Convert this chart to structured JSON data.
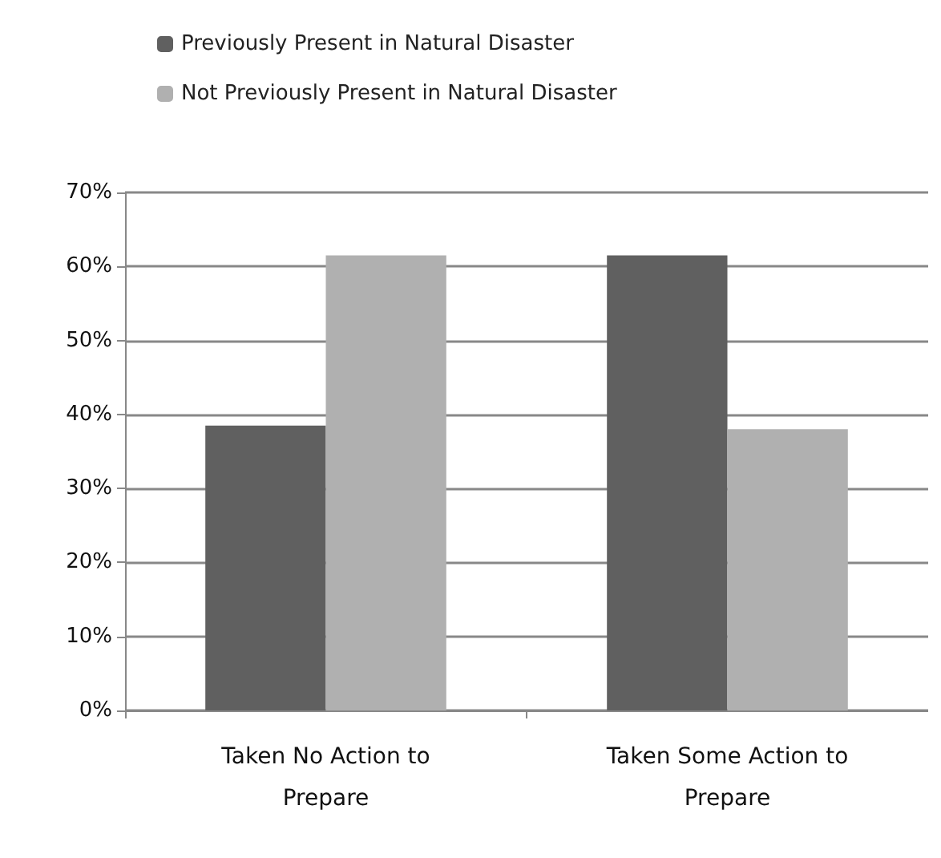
{
  "chart_data": {
    "type": "bar",
    "categories": [
      "Taken No Action to\nPrepare",
      "Taken Some Action to\nPrepare"
    ],
    "series": [
      {
        "name": "Previously Present in Natural Disaster",
        "color": "#606060",
        "values": [
          38.5,
          61.5
        ]
      },
      {
        "name": "Not Previously Present in Natural Disaster",
        "color": "#b0b0b0",
        "values": [
          61.5,
          38
        ]
      }
    ],
    "ylim": [
      0,
      70
    ],
    "yticks": [
      {
        "value": 0,
        "label": "0%"
      },
      {
        "value": 10,
        "label": "10%"
      },
      {
        "value": 20,
        "label": "20%"
      },
      {
        "value": 30,
        "label": "30%"
      },
      {
        "value": 40,
        "label": "40%"
      },
      {
        "value": 50,
        "label": "50%"
      },
      {
        "value": 60,
        "label": "60%"
      },
      {
        "value": 70,
        "label": "70%"
      }
    ],
    "grid": "y",
    "legend": "top left"
  }
}
